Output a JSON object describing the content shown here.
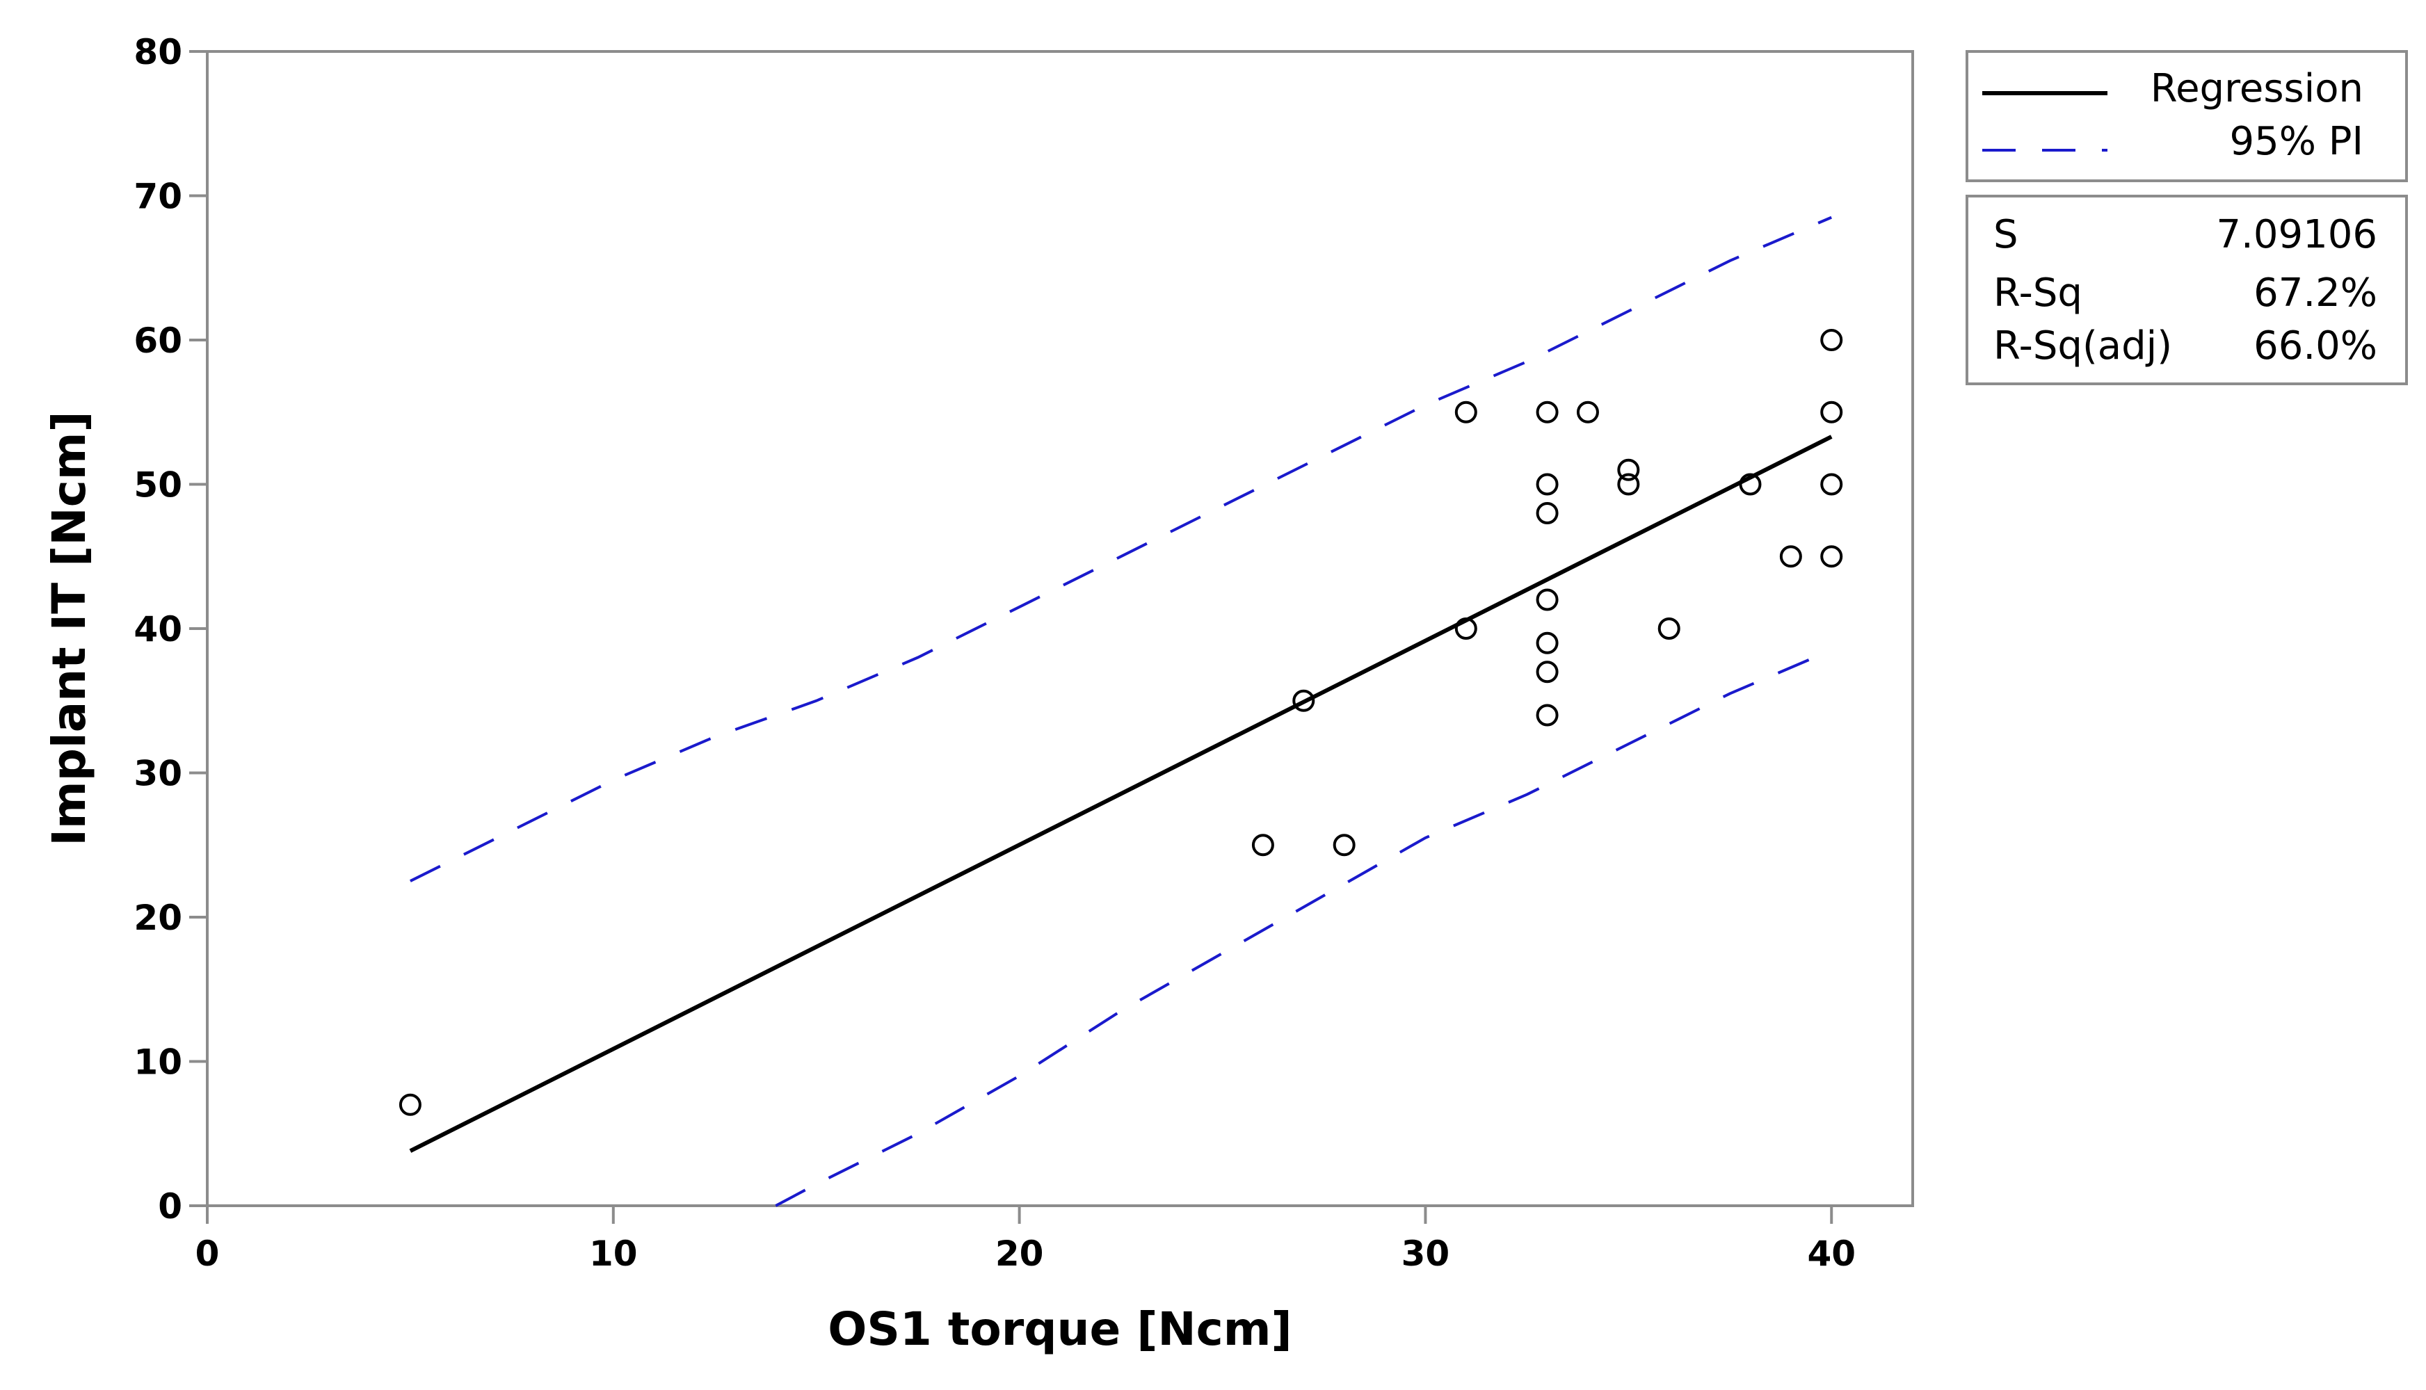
{
  "chart_data": {
    "type": "scatter",
    "xlabel": "OS1 torque [Ncm]",
    "ylabel": "Implant IT [Ncm]",
    "xlim": [
      0,
      42
    ],
    "ylim": [
      0,
      80
    ],
    "x_ticks": [
      0,
      10,
      20,
      30,
      40
    ],
    "y_ticks": [
      0,
      10,
      20,
      30,
      40,
      50,
      60,
      70,
      80
    ],
    "grid": false,
    "legend_position": "right",
    "points": [
      {
        "x": 5,
        "y": 7
      },
      {
        "x": 26,
        "y": 25
      },
      {
        "x": 27,
        "y": 35
      },
      {
        "x": 28,
        "y": 25
      },
      {
        "x": 31,
        "y": 55
      },
      {
        "x": 31,
        "y": 40
      },
      {
        "x": 33,
        "y": 55
      },
      {
        "x": 33,
        "y": 50
      },
      {
        "x": 33,
        "y": 48
      },
      {
        "x": 33,
        "y": 42
      },
      {
        "x": 33,
        "y": 39
      },
      {
        "x": 33,
        "y": 37
      },
      {
        "x": 33,
        "y": 34
      },
      {
        "x": 34,
        "y": 55
      },
      {
        "x": 35,
        "y": 51
      },
      {
        "x": 35,
        "y": 50
      },
      {
        "x": 36,
        "y": 40
      },
      {
        "x": 38,
        "y": 50
      },
      {
        "x": 39,
        "y": 45
      },
      {
        "x": 40,
        "y": 60
      },
      {
        "x": 40,
        "y": 55
      },
      {
        "x": 40,
        "y": 50
      },
      {
        "x": 40,
        "y": 45
      }
    ],
    "series": [
      {
        "name": "Regression",
        "style": "solid",
        "color": "#000000",
        "x": [
          5,
          40
        ],
        "y": [
          3.8,
          53.3
        ]
      },
      {
        "name": "95% PI",
        "style": "dashed",
        "color": "#1a1acc",
        "x": [
          5,
          7.5,
          10,
          12.5,
          15,
          17.5,
          20,
          22.5,
          25,
          27.5,
          30,
          32.5,
          35,
          37.5,
          40
        ],
        "y": [
          22.5,
          26,
          29.5,
          32.5,
          35,
          38,
          41.5,
          45,
          48.5,
          52,
          55.5,
          58.5,
          62,
          65.5,
          68.5
        ]
      },
      {
        "name": "95% PI lower",
        "style": "dashed",
        "color": "#1a1acc",
        "x": [
          14,
          15,
          17.5,
          20,
          22.5,
          25,
          27.5,
          30,
          32.5,
          35,
          37.5,
          40
        ],
        "y": [
          0,
          1.5,
          5,
          9,
          13.5,
          17.5,
          21.5,
          25.5,
          28.5,
          32,
          35.5,
          38.5
        ]
      }
    ],
    "legend": {
      "regression_label": "Regression",
      "pi_label": "95% PI"
    },
    "stats": [
      {
        "label": "S",
        "value": "7.09106"
      },
      {
        "label": "R-Sq",
        "value": "67.2%"
      },
      {
        "label": "R-Sq(adj)",
        "value": "66.0%"
      }
    ]
  }
}
